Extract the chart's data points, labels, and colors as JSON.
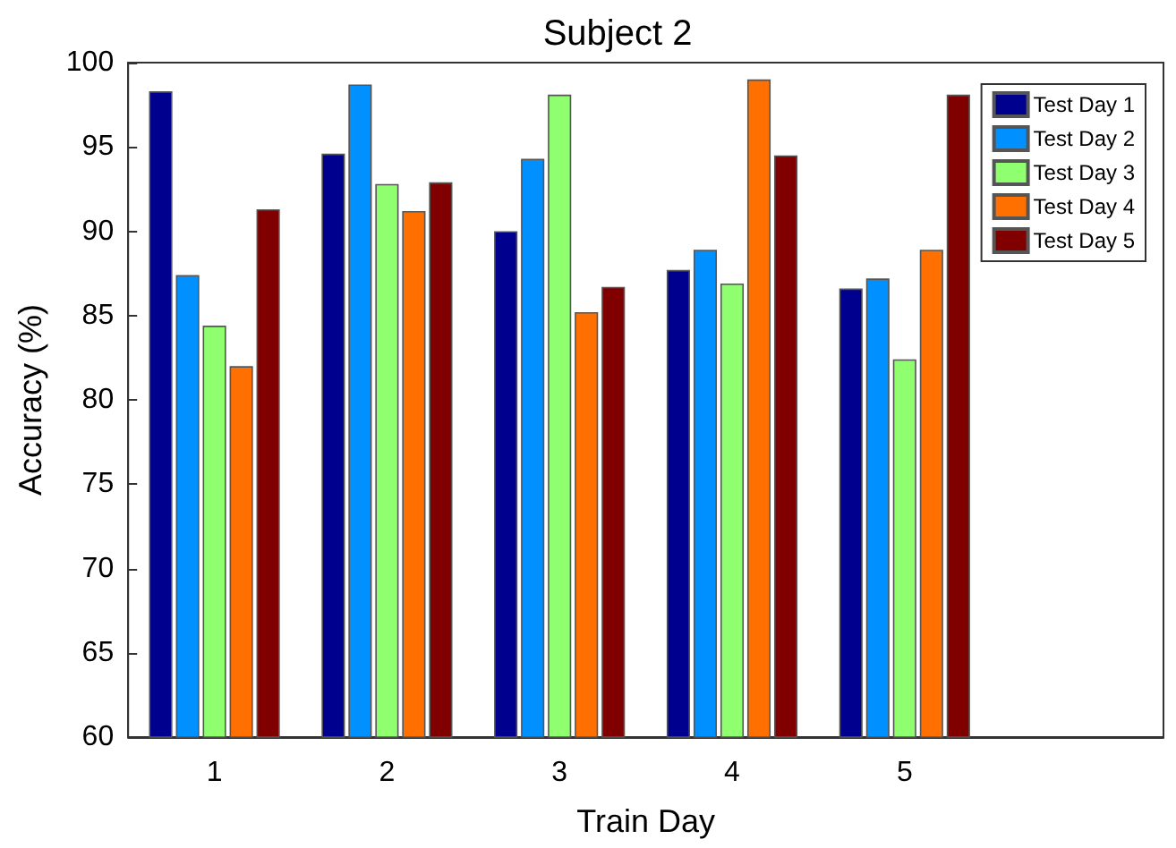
{
  "chart_data": {
    "type": "bar",
    "title": "Subject 2",
    "xlabel": "Train Day",
    "ylabel": "Accuracy (%)",
    "x": [
      1,
      2,
      3,
      4,
      5
    ],
    "series": [
      {
        "name": "Test Day 1",
        "color": "#00008f",
        "values": [
          98.3,
          94.6,
          90.0,
          87.7,
          86.6
        ]
      },
      {
        "name": "Test Day 2",
        "color": "#0090ff",
        "values": [
          87.4,
          98.7,
          94.3,
          88.9,
          87.2
        ]
      },
      {
        "name": "Test Day 3",
        "color": "#8fff70",
        "values": [
          84.4,
          92.8,
          98.1,
          86.9,
          82.4
        ]
      },
      {
        "name": "Test Day 4",
        "color": "#ff7000",
        "values": [
          82.0,
          91.2,
          85.2,
          99.0,
          88.9
        ]
      },
      {
        "name": "Test Day 5",
        "color": "#800000",
        "values": [
          91.3,
          92.9,
          86.7,
          94.5,
          98.1
        ]
      }
    ],
    "xlim": [
      0.5,
      6.5
    ],
    "xticks": [
      1,
      2,
      3,
      4,
      5
    ],
    "ylim": [
      60,
      100
    ],
    "yticks": [
      60,
      65,
      70,
      75,
      80,
      85,
      90,
      95,
      100
    ],
    "legend": "top right",
    "grid": false
  }
}
